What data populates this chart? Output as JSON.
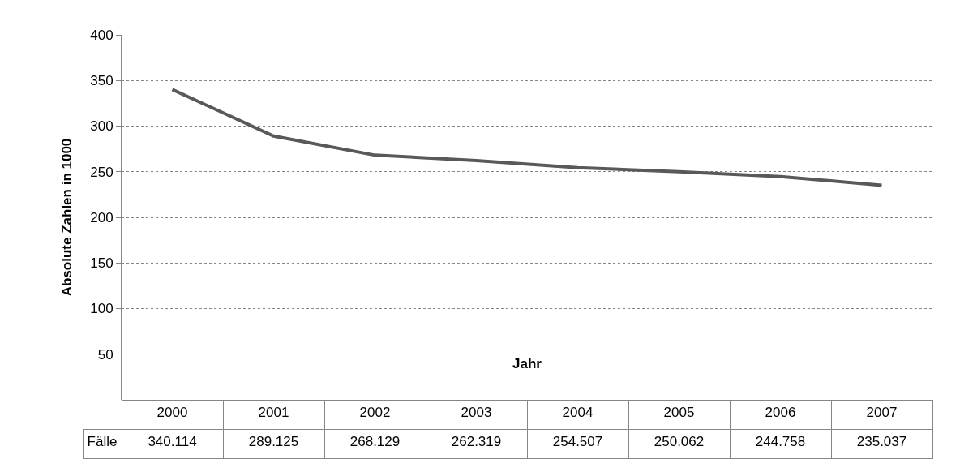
{
  "chart_data": {
    "type": "line",
    "xlabel": "Jahr",
    "ylabel": "Absolute Zahlen in 1000",
    "categories": [
      "2000",
      "2001",
      "2002",
      "2003",
      "2004",
      "2005",
      "2006",
      "2007"
    ],
    "series": [
      {
        "name": "Fälle",
        "color": "#595959",
        "values": [
          340.114,
          289.125,
          268.129,
          262.319,
          254.507,
          250.062,
          244.758,
          235.037
        ]
      }
    ],
    "ylim": [
      0,
      400
    ],
    "yticks": [
      {
        "value": 0,
        "label": null
      },
      50,
      100,
      150,
      200,
      250,
      300,
      350,
      400
    ],
    "grid": "y",
    "legend": false,
    "marker": "none",
    "line_style": "solid",
    "data_labels": true
  }
}
